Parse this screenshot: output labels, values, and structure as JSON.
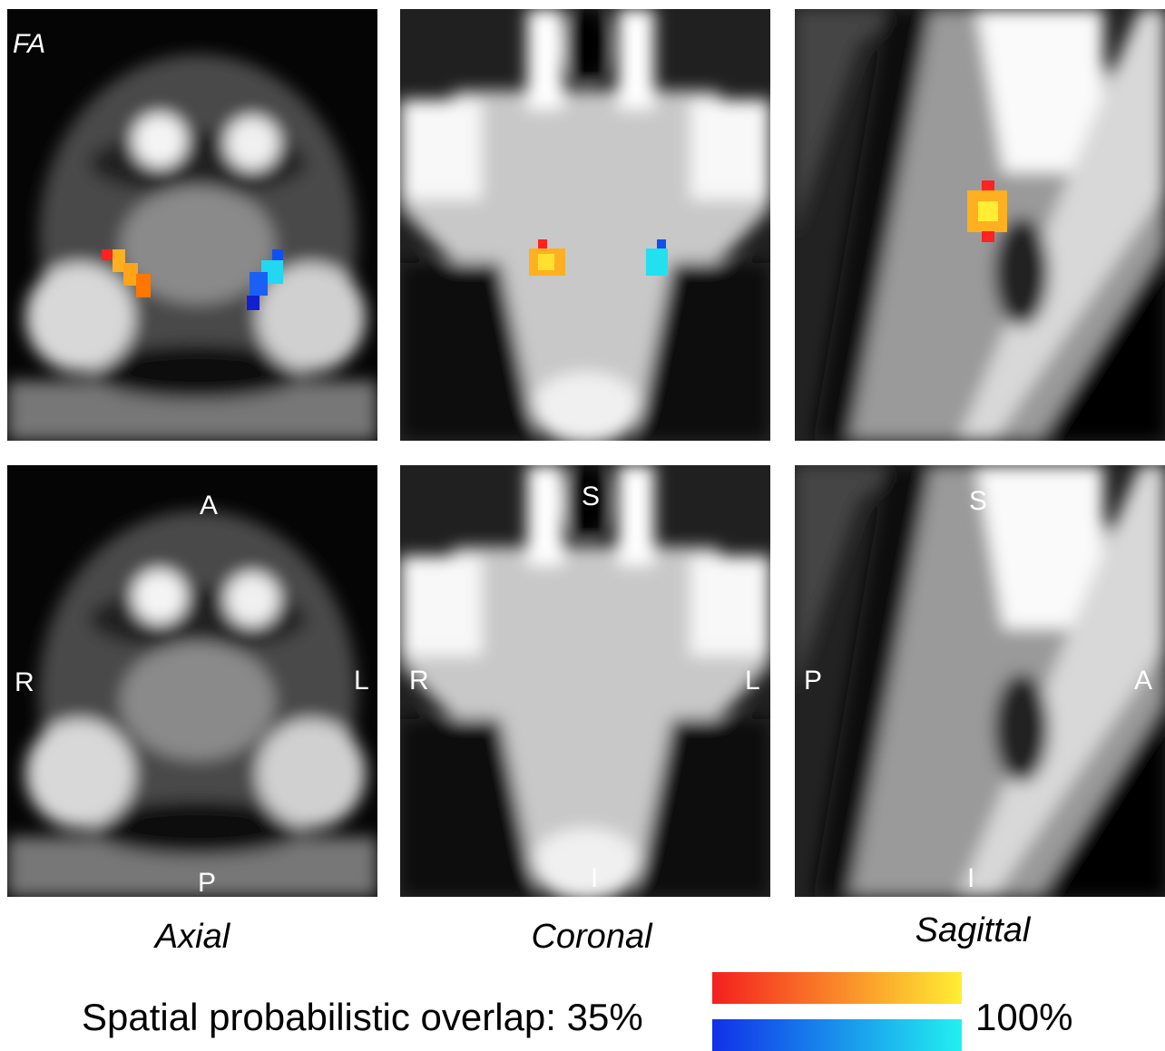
{
  "label": "FA",
  "panels": [
    {
      "view": "Axial",
      "orientation": [
        "A",
        "R",
        "L",
        "P"
      ]
    },
    {
      "view": "Coronal",
      "orientation": [
        "S",
        "R",
        "L",
        "I"
      ]
    },
    {
      "view": "Sagittal",
      "orientation": [
        "S",
        "P",
        "A",
        "I"
      ]
    }
  ],
  "legend": {
    "title": "Spatial probabilistic overlap: 35%",
    "max": "100%"
  }
}
